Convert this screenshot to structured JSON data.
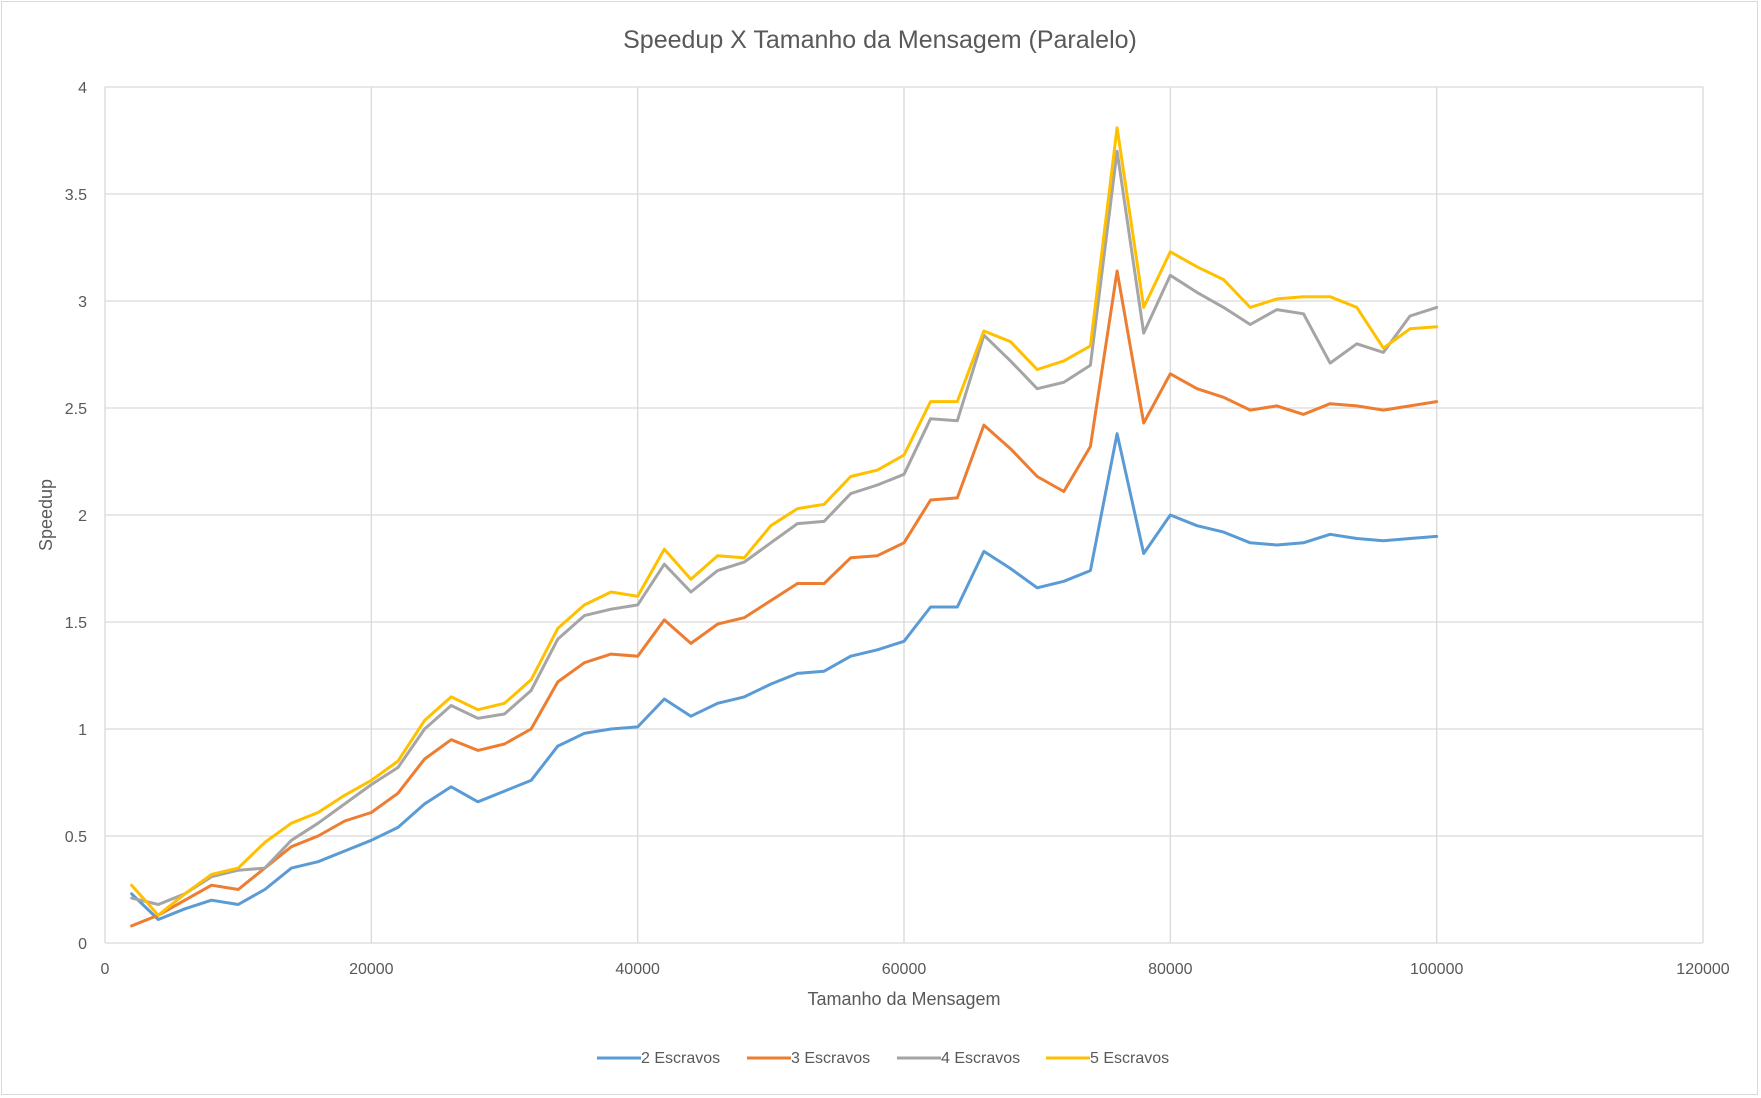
{
  "chart_data": {
    "type": "line",
    "title": "Speedup X Tamanho da Mensagem (Paralelo)",
    "xlabel": "Tamanho da Mensagem",
    "ylabel": "Speedup",
    "xlim": [
      0,
      120000
    ],
    "ylim": [
      0,
      4
    ],
    "x_ticks": [
      "0",
      "20000",
      "40000",
      "60000",
      "80000",
      "100000",
      "120000"
    ],
    "y_ticks": [
      "0",
      "0.5",
      "1",
      "1.5",
      "2",
      "2.5",
      "3",
      "3.5",
      "4"
    ],
    "x_tick_values": [
      0,
      20000,
      40000,
      60000,
      80000,
      100000,
      120000
    ],
    "y_tick_values": [
      0,
      0.5,
      1,
      1.5,
      2,
      2.5,
      3,
      3.5,
      4
    ],
    "grid": true,
    "legend_position": "bottom",
    "x": [
      2000,
      4000,
      6000,
      8000,
      10000,
      12000,
      14000,
      16000,
      18000,
      20000,
      22000,
      24000,
      26000,
      28000,
      30000,
      32000,
      34000,
      36000,
      38000,
      40000,
      42000,
      44000,
      46000,
      48000,
      50000,
      52000,
      54000,
      56000,
      58000,
      60000,
      62000,
      64000,
      66000,
      68000,
      70000,
      72000,
      74000,
      76000,
      78000,
      80000,
      82000,
      84000,
      86000,
      88000,
      90000,
      92000,
      94000,
      96000,
      98000,
      100000
    ],
    "series": [
      {
        "name": "2 Escravos",
        "color": "#5b9bd5",
        "values": [
          0.23,
          0.11,
          0.16,
          0.2,
          0.18,
          0.25,
          0.35,
          0.38,
          0.43,
          0.48,
          0.54,
          0.65,
          0.73,
          0.66,
          0.71,
          0.76,
          0.92,
          0.98,
          1.0,
          1.01,
          1.14,
          1.06,
          1.12,
          1.15,
          1.21,
          1.26,
          1.27,
          1.34,
          1.37,
          1.41,
          1.57,
          1.57,
          1.83,
          1.75,
          1.66,
          1.69,
          1.74,
          2.38,
          1.82,
          2.0,
          1.95,
          1.92,
          1.87,
          1.86,
          1.87,
          1.91,
          1.89,
          1.88,
          1.89,
          1.9
        ]
      },
      {
        "name": "3 Escravos",
        "color": "#ed7d31",
        "values": [
          0.08,
          0.13,
          0.2,
          0.27,
          0.25,
          0.35,
          0.45,
          0.5,
          0.57,
          0.61,
          0.7,
          0.86,
          0.95,
          0.9,
          0.93,
          1.0,
          1.22,
          1.31,
          1.35,
          1.34,
          1.51,
          1.4,
          1.49,
          1.52,
          1.6,
          1.68,
          1.68,
          1.8,
          1.81,
          1.87,
          2.07,
          2.08,
          2.42,
          2.31,
          2.18,
          2.11,
          2.32,
          3.14,
          2.43,
          2.66,
          2.59,
          2.55,
          2.49,
          2.51,
          2.47,
          2.52,
          2.51,
          2.49,
          2.51,
          2.53
        ]
      },
      {
        "name": "4 Escravos",
        "color": "#a5a5a5",
        "values": [
          0.21,
          0.18,
          0.23,
          0.31,
          0.34,
          0.35,
          0.48,
          0.56,
          0.65,
          0.74,
          0.82,
          1.0,
          1.11,
          1.05,
          1.07,
          1.18,
          1.42,
          1.53,
          1.56,
          1.58,
          1.77,
          1.64,
          1.74,
          1.78,
          1.87,
          1.96,
          1.97,
          2.1,
          2.14,
          2.19,
          2.45,
          2.44,
          2.84,
          2.72,
          2.59,
          2.62,
          2.7,
          3.7,
          2.85,
          3.12,
          3.04,
          2.97,
          2.89,
          2.96,
          2.94,
          2.71,
          2.8,
          2.76,
          2.93,
          2.97
        ]
      },
      {
        "name": "5 Escravos",
        "color": "#ffc000",
        "values": [
          0.27,
          0.13,
          0.23,
          0.32,
          0.35,
          0.47,
          0.56,
          0.61,
          0.69,
          0.76,
          0.85,
          1.04,
          1.15,
          1.09,
          1.12,
          1.23,
          1.47,
          1.58,
          1.64,
          1.62,
          1.84,
          1.7,
          1.81,
          1.8,
          1.95,
          2.03,
          2.05,
          2.18,
          2.21,
          2.28,
          2.53,
          2.53,
          2.86,
          2.81,
          2.68,
          2.72,
          2.79,
          3.81,
          2.97,
          3.23,
          3.16,
          3.1,
          2.97,
          3.01,
          3.02,
          3.02,
          2.97,
          2.78,
          2.87,
          2.88
        ]
      }
    ]
  }
}
